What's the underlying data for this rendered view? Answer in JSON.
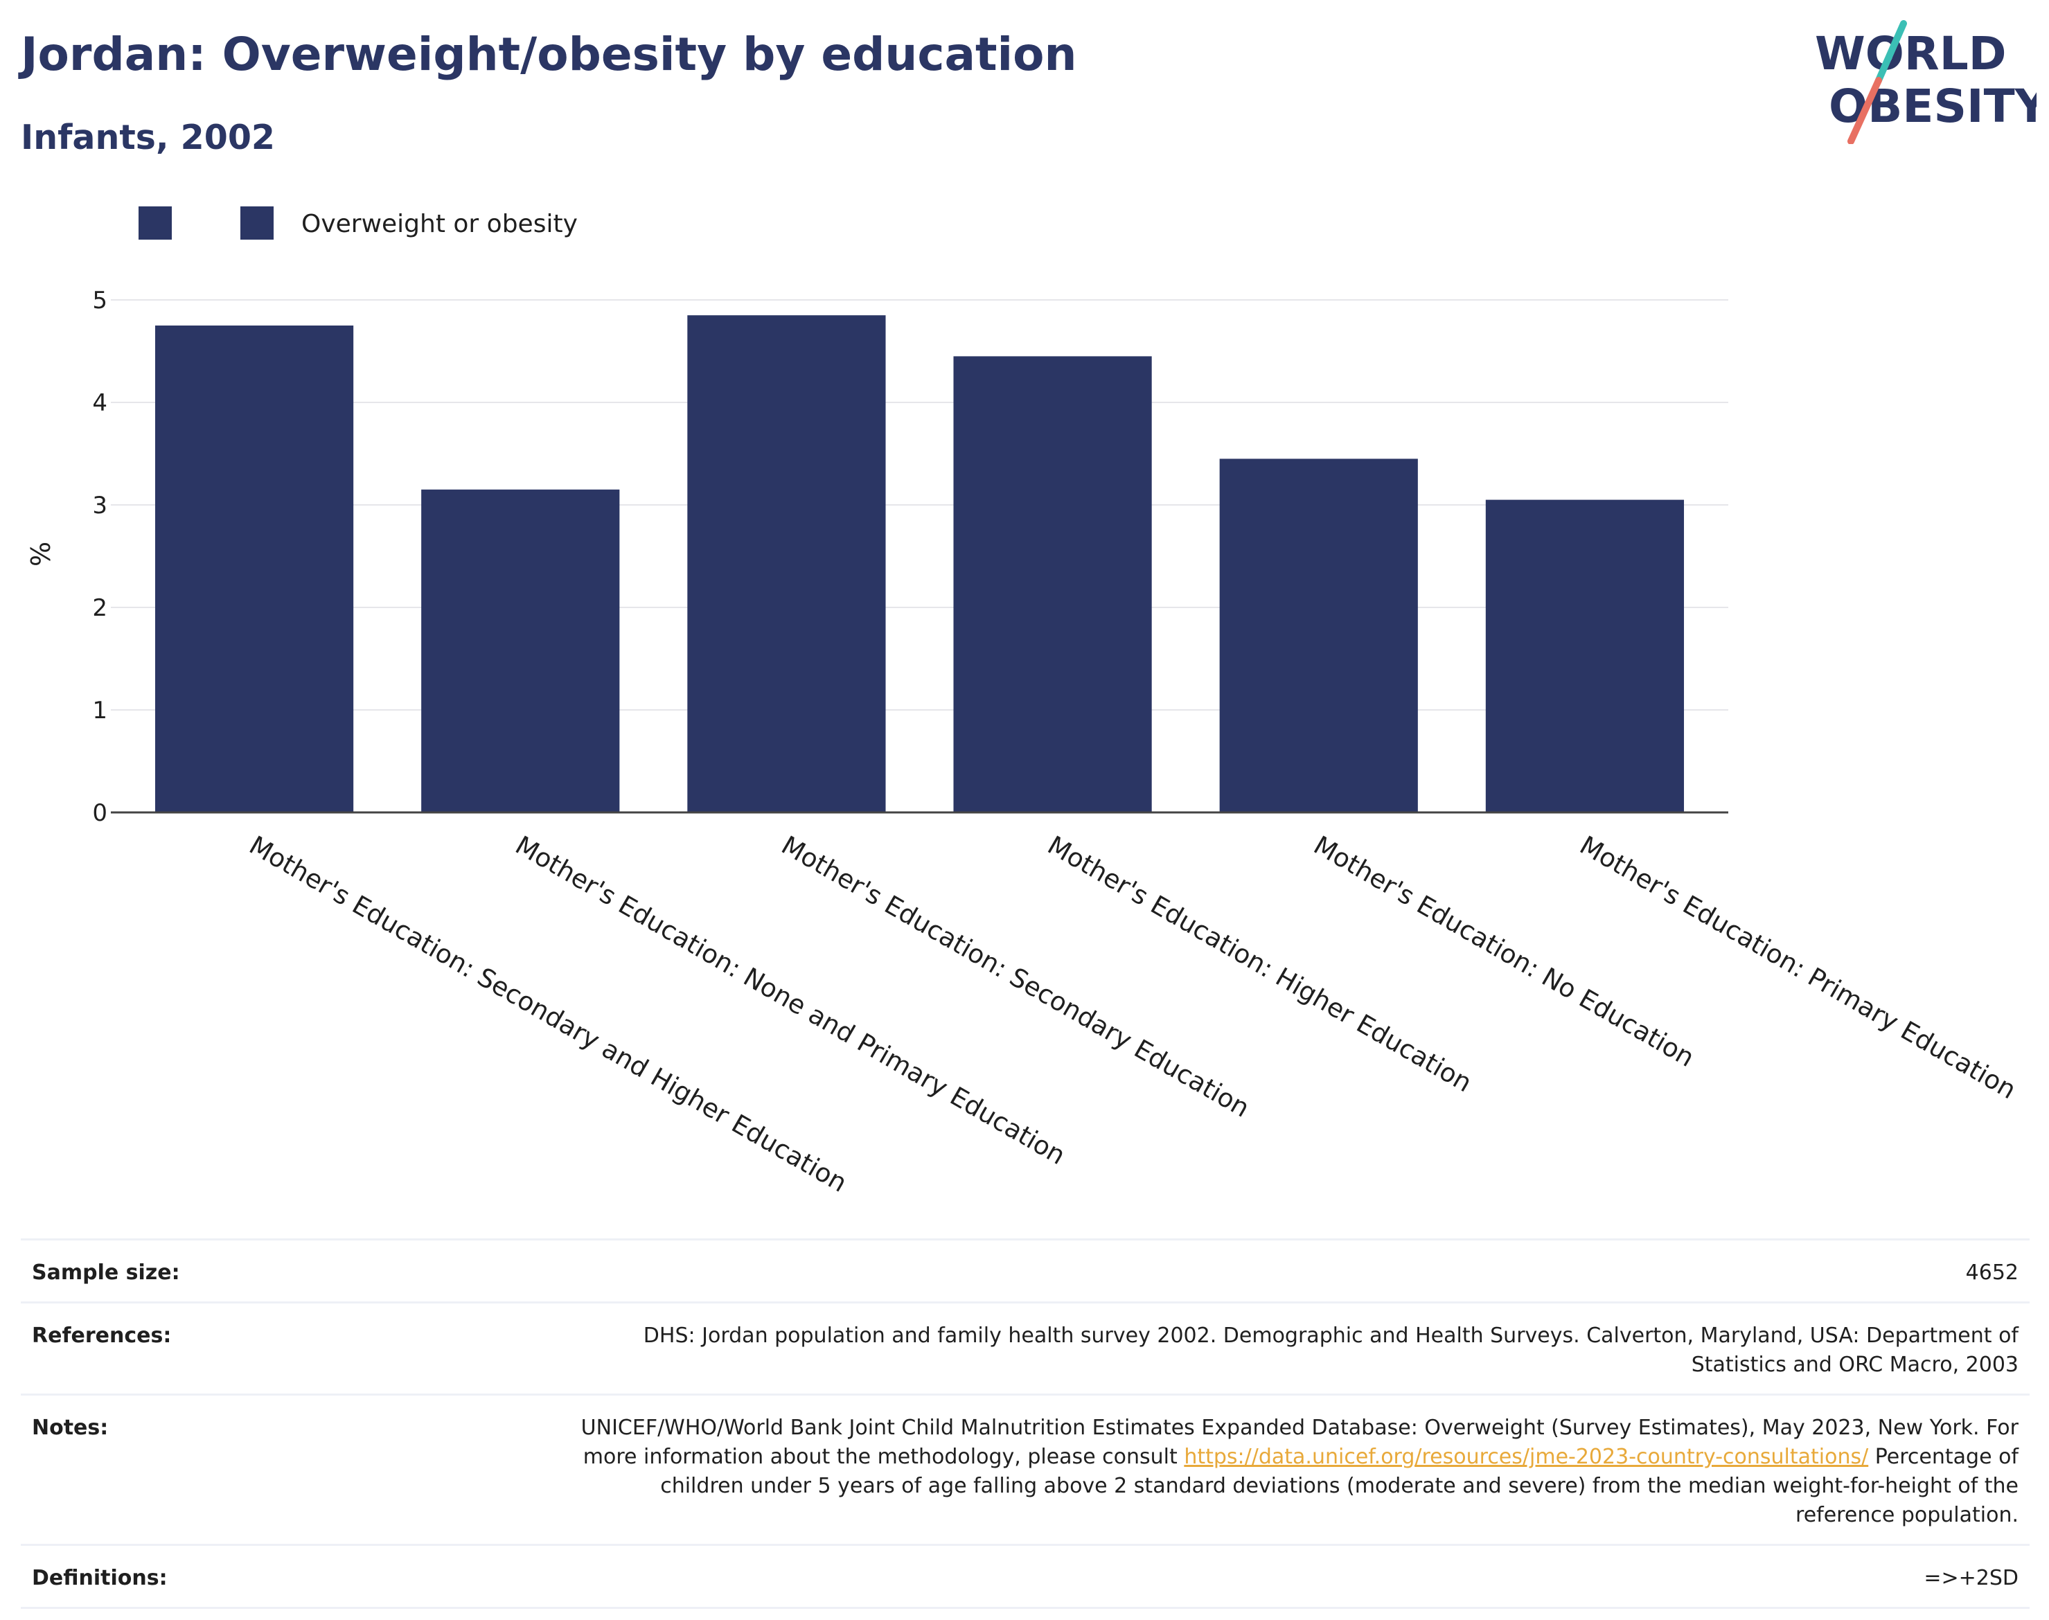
{
  "header": {
    "title": "Jordan: Overweight/obesity by education",
    "subtitle": "Infants, 2002"
  },
  "logo": {
    "line1": "WORLD",
    "line2": "OBESITY"
  },
  "colors": {
    "navy": "#2b3664",
    "bar": "#2b3664",
    "link": "#e8a93a",
    "logo_teal": "#3bbfb5",
    "logo_coral": "#e87062",
    "grid": "#e6e6ea"
  },
  "chart_data": {
    "type": "bar",
    "legend": [
      {
        "name": "",
        "color": "#2b3664"
      },
      {
        "name": "Overweight or obesity",
        "color": "#2b3664"
      }
    ],
    "categories": [
      "Mother's Education: Secondary and Higher Education",
      "Mother's Education: None and Primary Education",
      "Mother's Education: Secondary Education",
      "Mother's Education: Higher Education",
      "Mother's Education: No Education",
      "Mother's Education: Primary Education"
    ],
    "series": [
      {
        "name": "Overweight or obesity",
        "values": [
          4.75,
          3.15,
          4.85,
          4.45,
          3.45,
          3.05
        ]
      }
    ],
    "ylabel": "%",
    "ylim": [
      0,
      5
    ],
    "yticks": [
      "0",
      "1",
      "2",
      "3",
      "4",
      "5"
    ],
    "grid": true
  },
  "info": {
    "sample_size_label": "Sample size:",
    "sample_size_value": "4652",
    "references_label": "References:",
    "references_value": "DHS: Jordan population and family health survey 2002. Demographic and Health Surveys. Calverton, Maryland, USA: Department of Statistics and ORC Macro, 2003",
    "notes_label": "Notes:",
    "notes_before": "UNICEF/WHO/World Bank Joint Child Malnutrition Estimates Expanded Database: Overweight (Survey Estimates), May 2023, New York. For more information about the methodology, please consult ",
    "notes_link": "https://data.unicef.org/resources/jme-2023-country-consultations/",
    "notes_after": " Percentage of children under 5 years of age falling above 2 standard deviations (moderate and severe) from the median weight-for-height of the reference population.",
    "definitions_label": "Definitions:",
    "definitions_value": "=>+2SD"
  }
}
